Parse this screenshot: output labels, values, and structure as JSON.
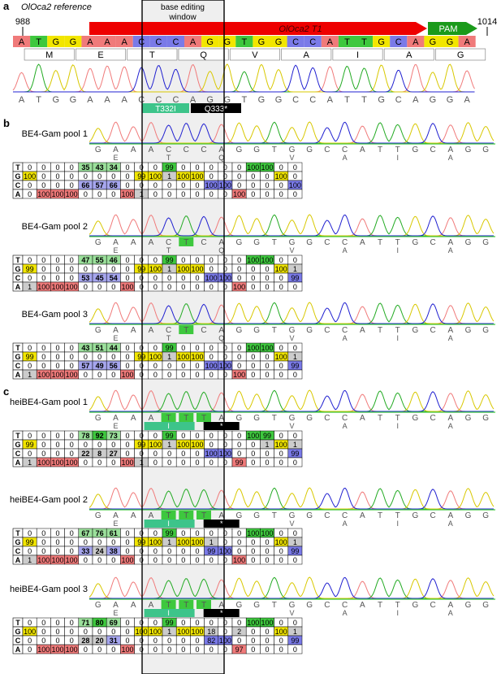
{
  "panels": {
    "a": "a",
    "b": "b",
    "c": "c"
  },
  "reference": {
    "title": "OlOca2 reference",
    "start": "988",
    "end": "1014",
    "sgrna": "OlOca2 T1",
    "pam": "PAM",
    "window_label_1": "base editing",
    "window_label_2": "window",
    "bases": [
      "A",
      "T",
      "G",
      "G",
      "A",
      "A",
      "A",
      "C",
      "C",
      "C",
      "A",
      "G",
      "G",
      "T",
      "G",
      "G",
      "C",
      "C",
      "A",
      "T",
      "T",
      "G",
      "C",
      "A",
      "G",
      "G",
      "A"
    ],
    "codons": [
      "M",
      "E",
      "T",
      "Q",
      "V",
      "A",
      "I",
      "A",
      "G"
    ],
    "trace_bases": [
      "A",
      "T",
      "G",
      "G",
      "A",
      "A",
      "A",
      "C",
      "C",
      "C",
      "A",
      "G",
      "G",
      "T",
      "G",
      "G",
      "C",
      "C",
      "A",
      "T",
      "T",
      "G",
      "C",
      "A",
      "G",
      "G",
      "A"
    ],
    "mutations": [
      "T332I",
      "Q333*"
    ]
  },
  "colors": {
    "A": "#f07a7a",
    "T": "#3ec83e",
    "G": "#f2e600",
    "C": "#7a7ae8",
    "sgrna": "#ee0000",
    "pam": "#1a9a1a"
  },
  "samples": [
    {
      "name": "BE4-Gam pool 1",
      "seq": [
        "G",
        "A",
        "A",
        "A",
        "C",
        "C",
        "C",
        "A",
        "G",
        "G",
        "T",
        "G",
        "G",
        "C",
        "C",
        "A",
        "T",
        "T",
        "G",
        "C",
        "A",
        "G",
        "G"
      ],
      "aa": [
        "E",
        "",
        "",
        "T",
        "",
        "",
        "Q",
        "",
        "",
        "",
        "V",
        "",
        "",
        "A",
        "",
        "",
        "I",
        "",
        "",
        "A",
        "",
        ""
      ],
      "aa_marks": {
        "E": 1,
        "T": 4,
        "Q": 7,
        "V": 11,
        "A1": 14,
        "I": 17,
        "A2": 20
      },
      "table": {
        "T": [
          "0",
          "0",
          "0",
          "0",
          "35",
          "43",
          "34",
          "0",
          "0",
          "0",
          "99",
          "0",
          "0",
          "0",
          "0",
          "0",
          "100",
          "100",
          "0",
          "0"
        ],
        "G": [
          "100",
          "0",
          "0",
          "0",
          "0",
          "0",
          "0",
          "0",
          "99",
          "100",
          "1",
          "100",
          "100",
          "0",
          "0",
          "0",
          "0",
          "0",
          "100",
          "0"
        ],
        "C": [
          "0",
          "0",
          "0",
          "0",
          "66",
          "57",
          "66",
          "0",
          "0",
          "0",
          "0",
          "0",
          "0",
          "100",
          "100",
          "0",
          "0",
          "0",
          "0",
          "100"
        ],
        "A": [
          "0",
          "100",
          "100",
          "100",
          "0",
          "0",
          "0",
          "100",
          "1",
          "0",
          "0",
          "0",
          "0",
          "0",
          "0",
          "100",
          "0",
          "0",
          "0",
          "0"
        ]
      }
    },
    {
      "name": "BE4-Gam pool 2",
      "seq": [
        "G",
        "A",
        "A",
        "A",
        "C",
        "T",
        "C",
        "A",
        "G",
        "G",
        "T",
        "G",
        "G",
        "C",
        "C",
        "A",
        "T",
        "T",
        "G",
        "C",
        "A",
        "G",
        "G"
      ],
      "table": {
        "T": [
          "0",
          "0",
          "0",
          "0",
          "47",
          "55",
          "46",
          "0",
          "0",
          "0",
          "99",
          "0",
          "0",
          "0",
          "0",
          "0",
          "100",
          "100",
          "0",
          "0"
        ],
        "G": [
          "99",
          "0",
          "0",
          "0",
          "0",
          "0",
          "0",
          "0",
          "99",
          "100",
          "1",
          "100",
          "100",
          "0",
          "0",
          "0",
          "0",
          "0",
          "100",
          "1"
        ],
        "C": [
          "0",
          "0",
          "0",
          "0",
          "53",
          "45",
          "54",
          "0",
          "0",
          "0",
          "0",
          "0",
          "0",
          "100",
          "100",
          "0",
          "0",
          "0",
          "0",
          "99"
        ],
        "A": [
          "1",
          "100",
          "100",
          "100",
          "0",
          "0",
          "0",
          "100",
          "0",
          "0",
          "0",
          "0",
          "0",
          "0",
          "0",
          "100",
          "0",
          "0",
          "0",
          "0"
        ]
      }
    },
    {
      "name": "BE4-Gam pool 3",
      "seq": [
        "G",
        "A",
        "A",
        "A",
        "C",
        "T",
        "C",
        "A",
        "G",
        "G",
        "T",
        "G",
        "G",
        "C",
        "C",
        "A",
        "T",
        "T",
        "G",
        "C",
        "A",
        "G",
        "G"
      ],
      "table": {
        "T": [
          "0",
          "0",
          "0",
          "0",
          "43",
          "51",
          "44",
          "0",
          "0",
          "0",
          "99",
          "0",
          "0",
          "0",
          "0",
          "0",
          "100",
          "100",
          "0",
          "0"
        ],
        "G": [
          "99",
          "0",
          "0",
          "0",
          "0",
          "0",
          "0",
          "0",
          "99",
          "100",
          "1",
          "100",
          "100",
          "0",
          "0",
          "0",
          "0",
          "0",
          "100",
          "1"
        ],
        "C": [
          "0",
          "0",
          "0",
          "0",
          "57",
          "49",
          "56",
          "0",
          "0",
          "0",
          "0",
          "0",
          "0",
          "100",
          "100",
          "0",
          "0",
          "0",
          "0",
          "99"
        ],
        "A": [
          "1",
          "100",
          "100",
          "100",
          "0",
          "0",
          "0",
          "100",
          "0",
          "0",
          "0",
          "0",
          "0",
          "0",
          "0",
          "100",
          "0",
          "0",
          "0",
          "0"
        ]
      }
    },
    {
      "name": "heiBE4-Gam pool 1",
      "seq": [
        "G",
        "A",
        "A",
        "A",
        "T",
        "T",
        "T",
        "A",
        "G",
        "G",
        "T",
        "G",
        "G",
        "C",
        "C",
        "A",
        "T",
        "T",
        "G",
        "C",
        "A",
        "G",
        "G"
      ],
      "table": {
        "T": [
          "0",
          "0",
          "0",
          "0",
          "78",
          "92",
          "73",
          "0",
          "0",
          "0",
          "99",
          "0",
          "0",
          "0",
          "0",
          "0",
          "100",
          "99",
          "0",
          "0"
        ],
        "G": [
          "99",
          "0",
          "0",
          "0",
          "0",
          "0",
          "0",
          "0",
          "99",
          "100",
          "1",
          "100",
          "100",
          "0",
          "0",
          "0",
          "0",
          "1",
          "100",
          "1"
        ],
        "C": [
          "0",
          "0",
          "0",
          "0",
          "22",
          "8",
          "27",
          "0",
          "0",
          "0",
          "0",
          "0",
          "0",
          "100",
          "100",
          "0",
          "0",
          "0",
          "0",
          "99"
        ],
        "A": [
          "1",
          "100",
          "100",
          "100",
          "0",
          "0",
          "0",
          "100",
          "1",
          "0",
          "0",
          "0",
          "0",
          "0",
          "0",
          "99",
          "0",
          "0",
          "0",
          "0"
        ]
      }
    },
    {
      "name": "heiBE4-Gam pool 2",
      "seq": [
        "G",
        "A",
        "A",
        "A",
        "T",
        "T",
        "T",
        "A",
        "G",
        "G",
        "T",
        "G",
        "G",
        "C",
        "C",
        "A",
        "T",
        "T",
        "G",
        "C",
        "A",
        "G",
        "G"
      ],
      "table": {
        "T": [
          "0",
          "0",
          "0",
          "0",
          "67",
          "76",
          "61",
          "0",
          "0",
          "0",
          "99",
          "0",
          "0",
          "0",
          "0",
          "0",
          "100",
          "100",
          "0",
          "0"
        ],
        "G": [
          "99",
          "0",
          "0",
          "0",
          "0",
          "0",
          "0",
          "0",
          "99",
          "100",
          "1",
          "100",
          "100",
          "1",
          "0",
          "0",
          "0",
          "0",
          "100",
          "1"
        ],
        "C": [
          "0",
          "0",
          "0",
          "0",
          "33",
          "24",
          "38",
          "0",
          "0",
          "0",
          "0",
          "0",
          "0",
          "99",
          "100",
          "0",
          "0",
          "0",
          "0",
          "99"
        ],
        "A": [
          "1",
          "100",
          "100",
          "100",
          "0",
          "0",
          "0",
          "100",
          "0",
          "0",
          "0",
          "0",
          "0",
          "0",
          "0",
          "100",
          "0",
          "0",
          "0",
          "0"
        ]
      }
    },
    {
      "name": "heiBE4-Gam pool 3",
      "seq": [
        "G",
        "A",
        "A",
        "A",
        "T",
        "T",
        "T",
        "A",
        "G",
        "G",
        "T",
        "G",
        "G",
        "C",
        "C",
        "A",
        "T",
        "T",
        "G",
        "C",
        "A",
        "G",
        "G"
      ],
      "table": {
        "T": [
          "0",
          "0",
          "0",
          "0",
          "71",
          "80",
          "69",
          "0",
          "0",
          "0",
          "99",
          "0",
          "0",
          "0",
          "0",
          "0",
          "100",
          "100",
          "0",
          "0"
        ],
        "G": [
          "100",
          "0",
          "0",
          "0",
          "0",
          "0",
          "0",
          "0",
          "100",
          "100",
          "1",
          "100",
          "100",
          "18",
          "0",
          "2",
          "0",
          "0",
          "100",
          "1"
        ],
        "C": [
          "0",
          "0",
          "0",
          "0",
          "28",
          "20",
          "31",
          "0",
          "0",
          "0",
          "0",
          "0",
          "0",
          "82",
          "100",
          "0",
          "0",
          "0",
          "0",
          "99"
        ],
        "A": [
          "0",
          "100",
          "100",
          "100",
          "0",
          "0",
          "0",
          "100",
          "0",
          "0",
          "0",
          "0",
          "0",
          "0",
          "0",
          "97",
          "0",
          "0",
          "0",
          "0"
        ]
      }
    }
  ],
  "aa_row": [
    "E",
    "T",
    "Q",
    "V",
    "A",
    "I",
    "A"
  ],
  "aa_row_hei": [
    "E",
    "I",
    "*",
    "V",
    "A",
    "I",
    "A"
  ],
  "base_letters": [
    "T",
    "G",
    "C",
    "A"
  ]
}
